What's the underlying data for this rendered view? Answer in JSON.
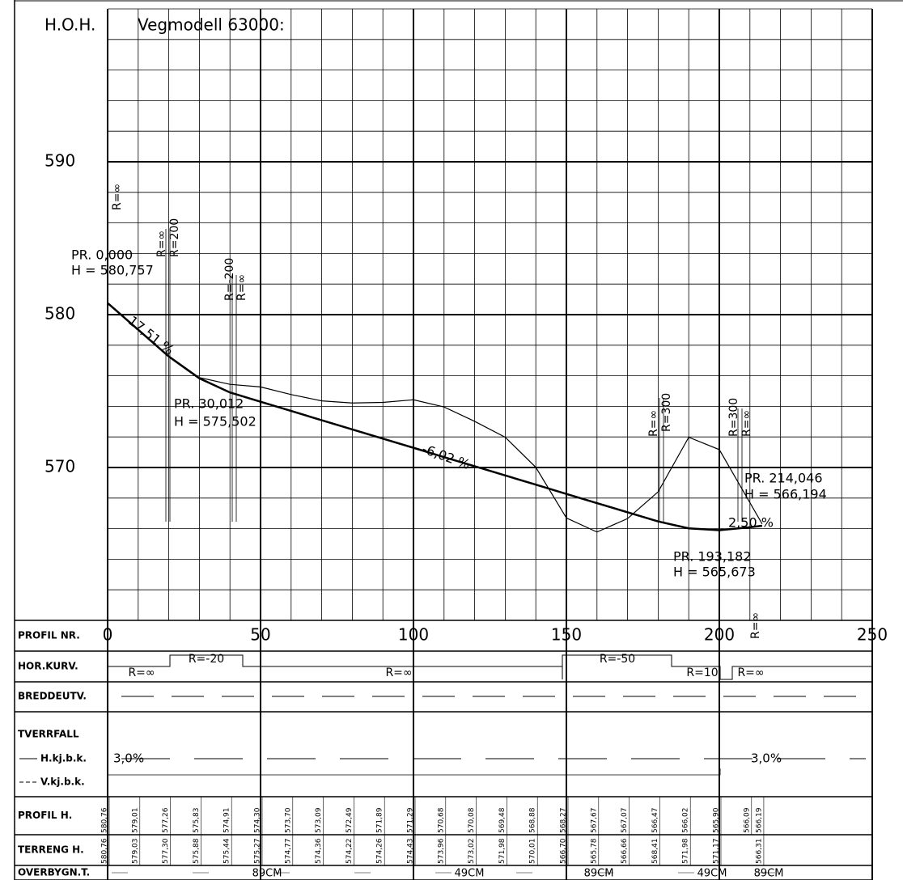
{
  "chart_data": {
    "type": "line",
    "y_label": "H.O.H.",
    "title": "Vegmodell 63000:",
    "xlim": [
      0,
      250
    ],
    "xticks": [
      0,
      50,
      100,
      150,
      200,
      250
    ],
    "ylim": [
      560,
      600
    ],
    "yticks": [
      570,
      580,
      590
    ],
    "grid": true,
    "series": [
      {
        "name": "PROFIL H.",
        "color": "#000000",
        "x": [
          0,
          10,
          20,
          30,
          40,
          50,
          60,
          70,
          80,
          90,
          100,
          110,
          120,
          130,
          140,
          150,
          160,
          170,
          180,
          190,
          200,
          210,
          214
        ],
        "values": [
          580.76,
          579.01,
          577.26,
          575.83,
          574.91,
          574.3,
          573.7,
          573.09,
          572.49,
          571.89,
          571.29,
          570.68,
          570.08,
          569.48,
          568.88,
          568.27,
          567.67,
          567.07,
          566.47,
          566.02,
          565.9,
          566.09,
          566.19
        ],
        "value_labels": [
          "580,76",
          "579,01",
          "577,26",
          "575,83",
          "574,91",
          "574,30",
          "573,70",
          "573,09",
          "572,49",
          "571,89",
          "571,29",
          "570,68",
          "570,08",
          "569,48",
          "568,88",
          "568,27",
          "567,67",
          "567,07",
          "566,47",
          "566,02",
          "565,90",
          "566,09",
          "566,19"
        ]
      },
      {
        "name": "TERRENG H.",
        "color": "#000000",
        "x": [
          0,
          10,
          20,
          30,
          40,
          50,
          60,
          70,
          80,
          90,
          100,
          110,
          120,
          130,
          140,
          150,
          160,
          170,
          180,
          190,
          200,
          214
        ],
        "values": [
          580.76,
          579.03,
          577.3,
          575.88,
          575.44,
          575.27,
          574.77,
          574.36,
          574.22,
          574.26,
          574.43,
          573.96,
          573.02,
          571.98,
          570.01,
          566.7,
          565.78,
          566.66,
          568.41,
          571.98,
          571.17,
          566.31
        ],
        "value_labels": [
          "580,76",
          "579,03",
          "577,30",
          "575,88",
          "575,44",
          "575,27",
          "574,77",
          "574,36",
          "574,22",
          "574,26",
          "574,43",
          "573,96",
          "573,02",
          "571,98",
          "570,01",
          "566,70",
          "565,78",
          "566,66",
          "568,41",
          "571,98",
          "571,17",
          "566,31"
        ]
      }
    ],
    "annotations": [
      "PR. 0,000",
      "H = 580,757",
      "17,51 %",
      "PR. 30,012",
      "H = 575,502",
      "-6,02 %",
      "PR. 193,182",
      "H = 565,673",
      "PR. 214,046",
      "H = 566,194",
      "2,50 %"
    ],
    "curve_labels": [
      "R=∞",
      "R=∞",
      "R=200",
      "R=-200",
      "R=∞",
      "R=∞",
      "R=300",
      "R=300",
      "R=∞",
      "R=∞"
    ],
    "row_labels": [
      "PROFIL NR.",
      "HOR.KURV.",
      "BREDDEUTV.",
      "TVERRFALL",
      "OVERBYGN.T."
    ],
    "tverrfall_labels": [
      "H.kj.b.k.",
      "V.kj.b.k."
    ],
    "hor_kurv": [
      "R=∞",
      "R=-20",
      "R=∞",
      "R=-50",
      "R=10",
      "R=∞"
    ],
    "tverrfall": [
      "3,0%",
      "3,0%"
    ],
    "overbygn": [
      "89CM",
      "49CM",
      "89CM",
      "49CM",
      "89CM"
    ]
  }
}
